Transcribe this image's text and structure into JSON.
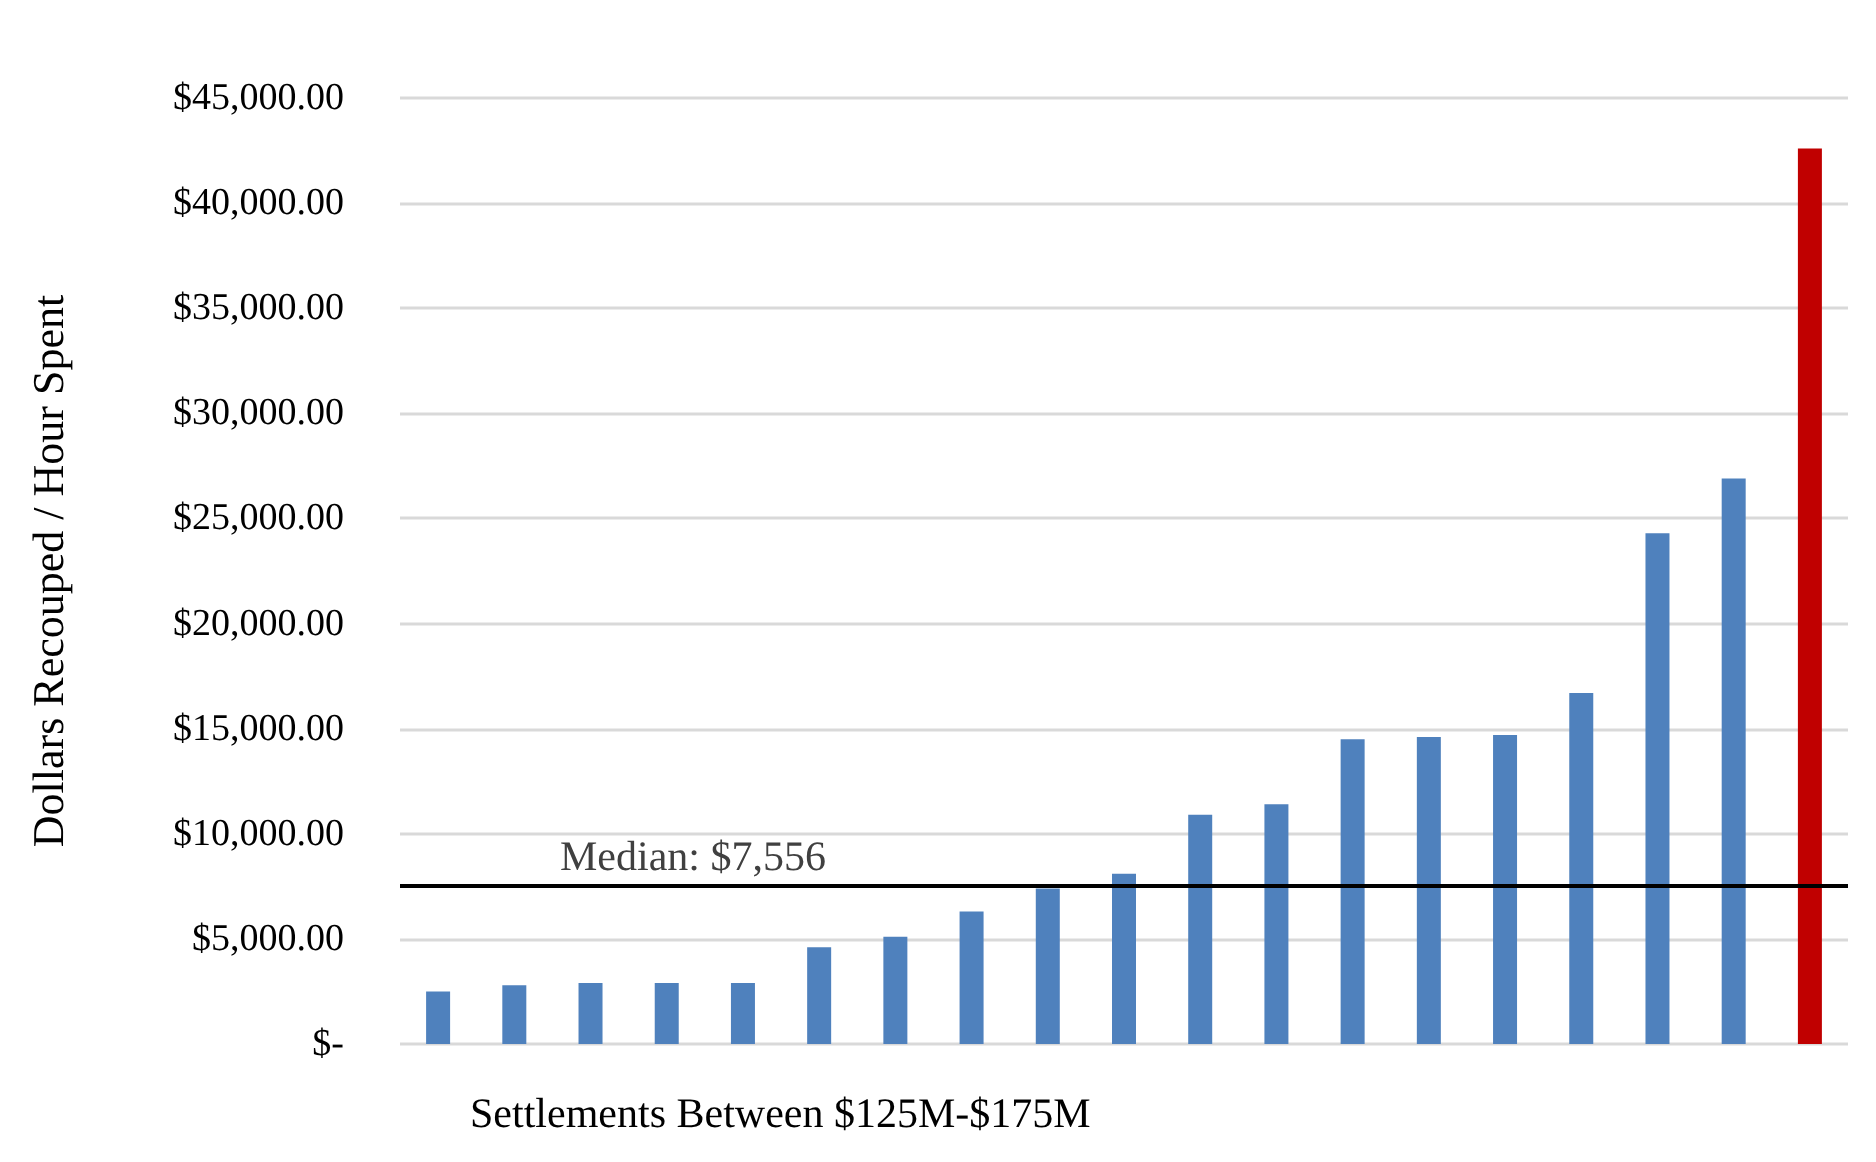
{
  "chart_data": {
    "type": "bar",
    "xlabel": "Settlements Between $125M-$175M",
    "ylabel": "Dollars Recouped / Hour Spent",
    "categories": [
      null,
      null,
      null,
      null,
      null,
      null,
      null,
      null,
      null,
      null,
      null,
      null,
      null,
      null,
      null,
      null,
      null,
      null,
      null
    ],
    "values": [
      2500,
      2800,
      2900,
      2900,
      2900,
      4600,
      5100,
      6300,
      7400,
      8100,
      10900,
      11400,
      14500,
      14600,
      14700,
      16700,
      24300,
      26900,
      42600
    ],
    "colors": [
      "#4f81bd",
      "#4f81bd",
      "#4f81bd",
      "#4f81bd",
      "#4f81bd",
      "#4f81bd",
      "#4f81bd",
      "#4f81bd",
      "#4f81bd",
      "#4f81bd",
      "#4f81bd",
      "#4f81bd",
      "#4f81bd",
      "#4f81bd",
      "#4f81bd",
      "#4f81bd",
      "#4f81bd",
      "#4f81bd",
      "#c00000"
    ],
    "ylim": [
      0,
      45000
    ],
    "yticks": [
      {
        "value": 0,
        "label": "$-"
      },
      {
        "value": 5000,
        "label": "$5,000.00"
      },
      {
        "value": 10000,
        "label": "$10,000.00"
      },
      {
        "value": 15000,
        "label": "$15,000.00"
      },
      {
        "value": 20000,
        "label": "$20,000.00"
      },
      {
        "value": 25000,
        "label": "$25,000.00"
      },
      {
        "value": 30000,
        "label": "$30,000.00"
      },
      {
        "value": 35000,
        "label": "$35,000.00"
      },
      {
        "value": 40000,
        "label": "$40,000.00"
      },
      {
        "value": 45000,
        "label": "$45,000.00"
      }
    ],
    "ref_lines": [
      {
        "axis": "y",
        "value": 7556,
        "label": "Median: $7,556",
        "color": "#000000"
      }
    ],
    "grid": "y"
  }
}
